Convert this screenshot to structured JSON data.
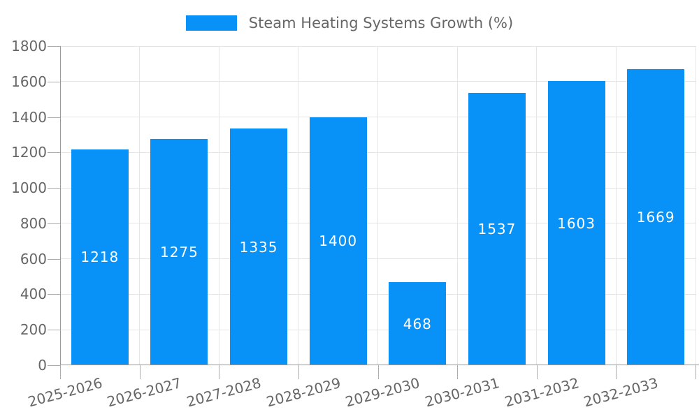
{
  "legend": {
    "label": "Steam Heating Systems Growth (%)"
  },
  "chart_data": {
    "type": "bar",
    "title": "Steam Heating Systems Growth (%)",
    "series": [
      {
        "name": "Steam Heating Systems Growth (%)",
        "values": [
          1218,
          1275,
          1335,
          1400,
          468,
          1537,
          1603,
          1669
        ]
      }
    ],
    "categories": [
      "2025-2026",
      "2026-2027",
      "2027-2028",
      "2028-2029",
      "2029-2030",
      "2030-2031",
      "2031-2032",
      "2032-2033"
    ],
    "values": [
      1218,
      1275,
      1335,
      1400,
      468,
      1537,
      1603,
      1669
    ],
    "value_labels": [
      "1218",
      "1275",
      "1335",
      "1400",
      "468",
      "1537",
      "1603",
      "1669"
    ],
    "value_label_position": "inside-center",
    "xlabel": "",
    "ylabel": "",
    "ylim": [
      0,
      1800
    ],
    "yticks": [
      0,
      200,
      400,
      600,
      800,
      1000,
      1200,
      1400,
      1600,
      1800
    ],
    "ytick_labels": [
      "0",
      "200",
      "400",
      "600",
      "800",
      "1000",
      "1200",
      "1400",
      "1600",
      "1800"
    ],
    "grid": true,
    "legend_position": "top-center",
    "x_label_rotation_deg": 15,
    "colors": {
      "bar": "#0892f8",
      "grid": "#e5e5e5",
      "axis": "#999999",
      "tick": "#ababab",
      "tick_label": "#666666",
      "legend_text": "#666666",
      "value_label": "#ffffff",
      "background": "#ffffff"
    }
  }
}
